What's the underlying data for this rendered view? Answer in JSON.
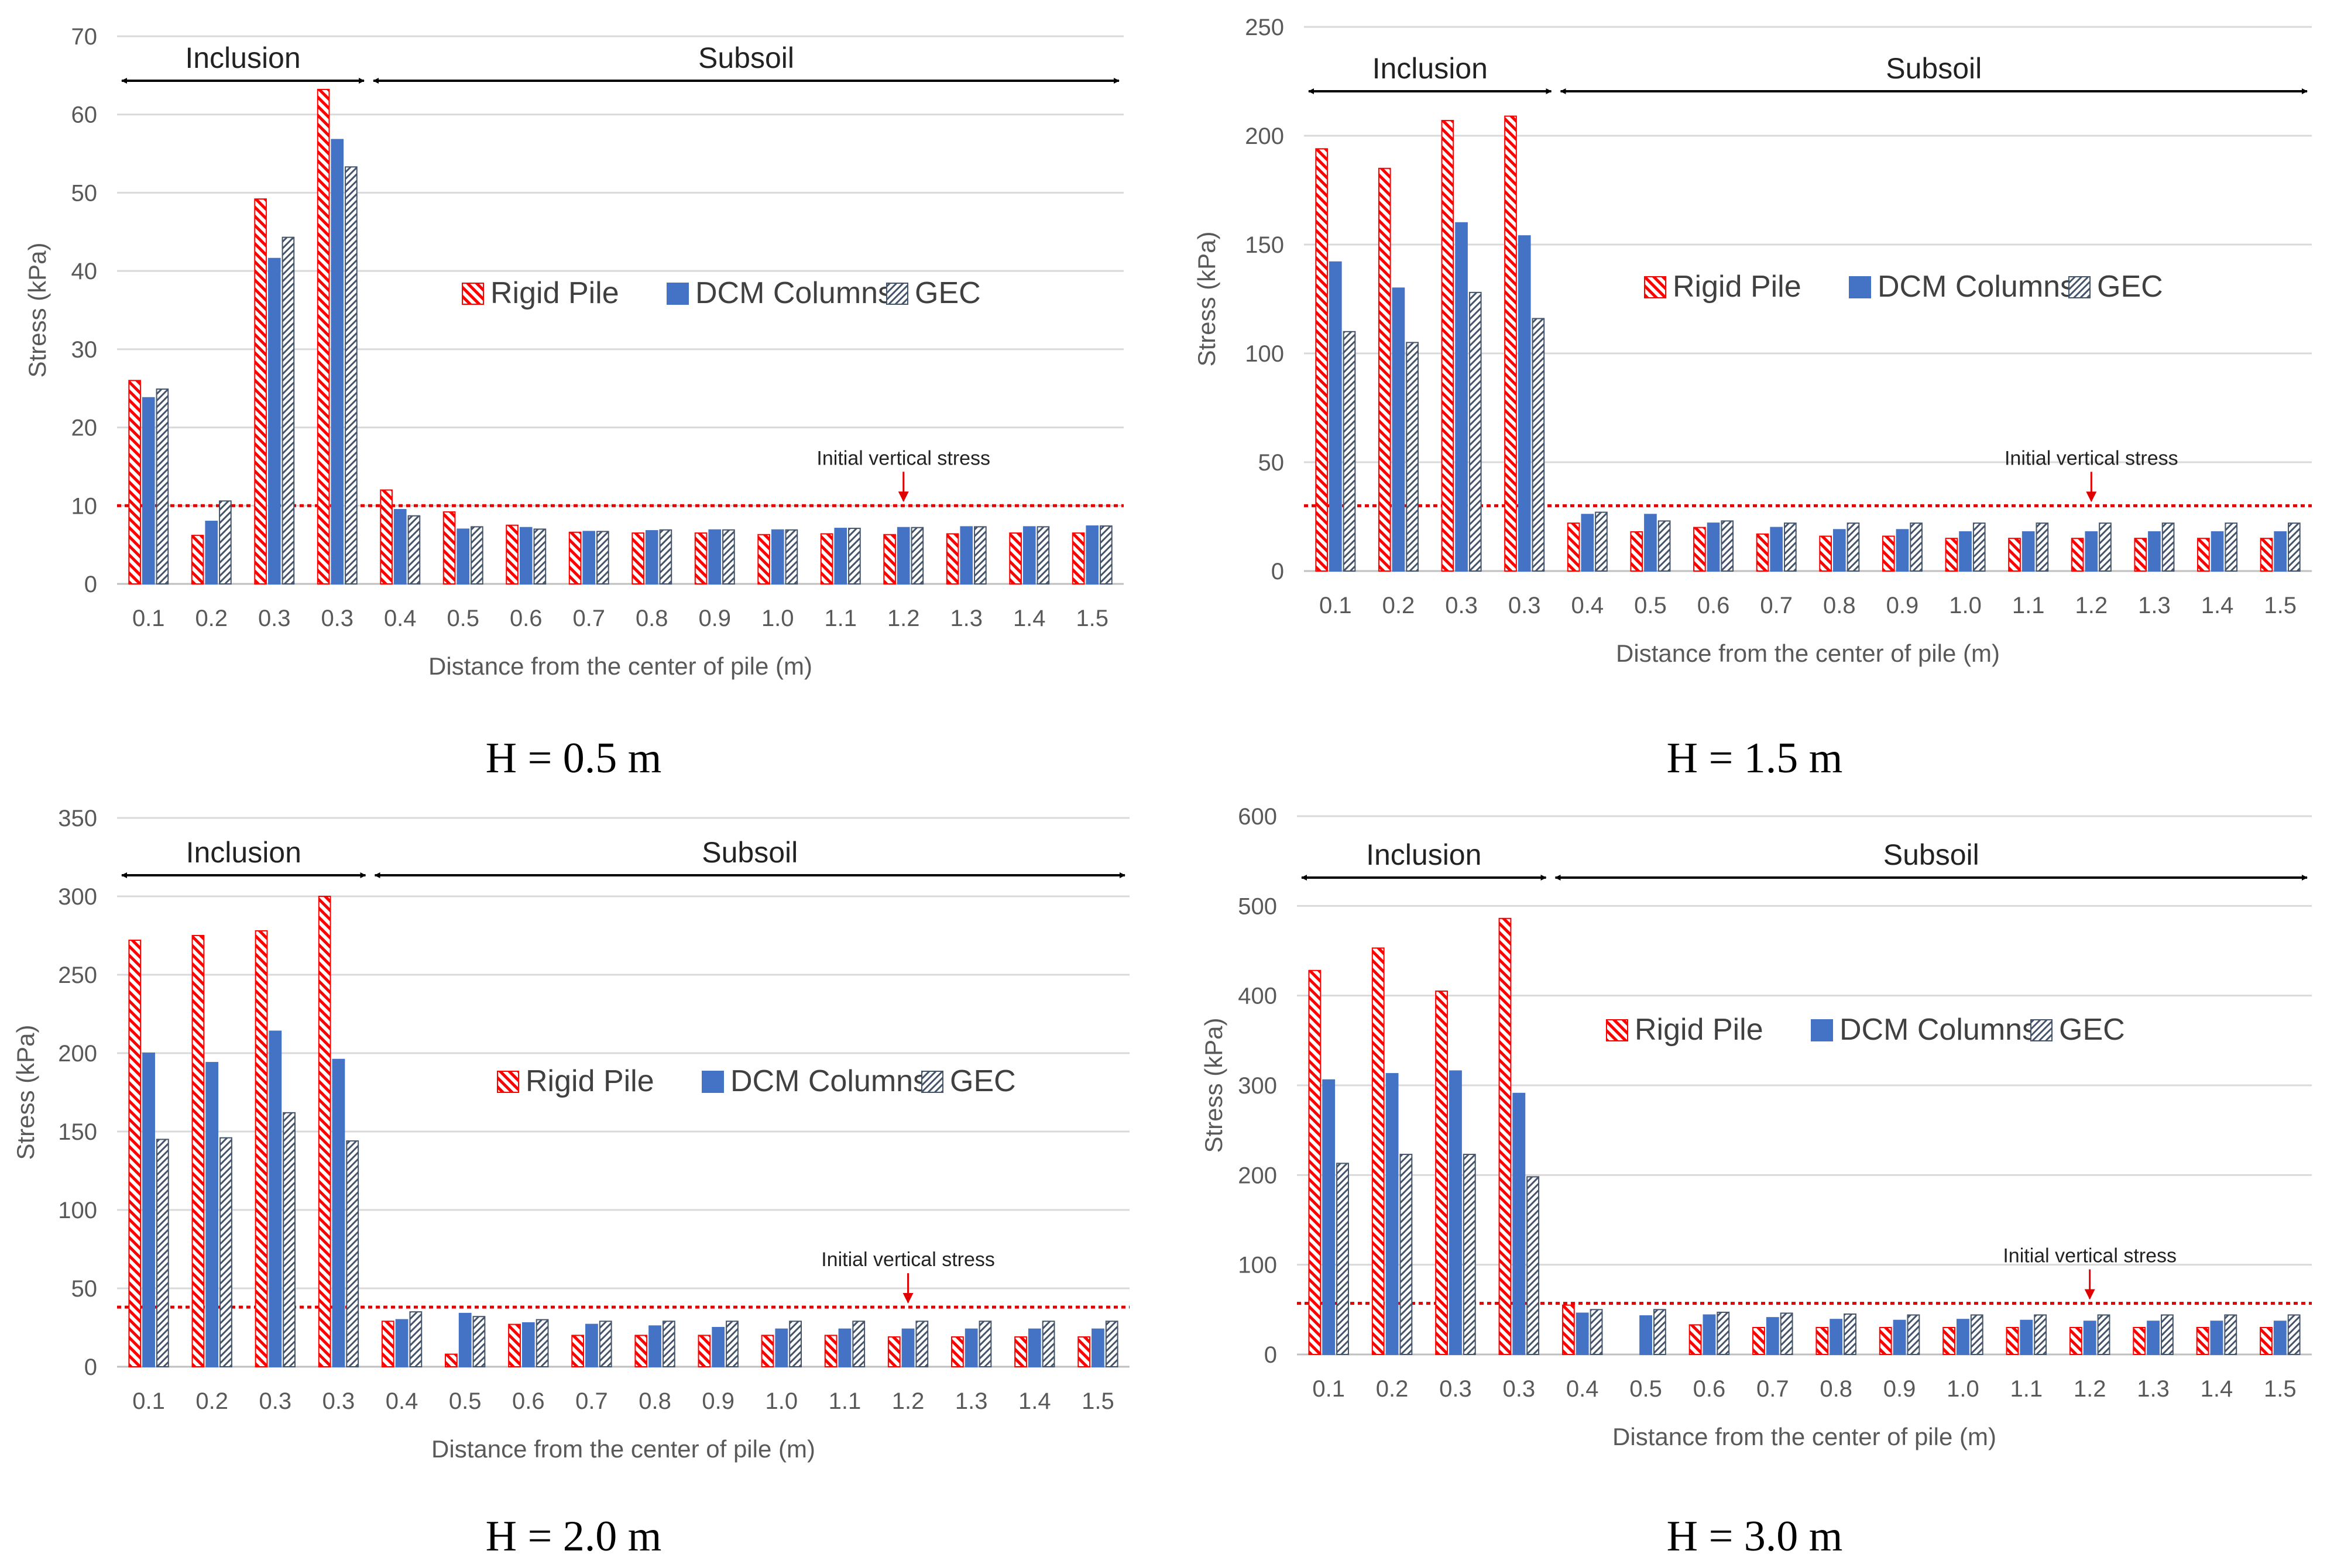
{
  "figure": {
    "series_names": [
      "Rigid Pile",
      "DCM Columns",
      "GEC"
    ],
    "colors": {
      "rigid": "#ff0000",
      "dcm": "#4472c4",
      "gec": "#44546a",
      "grid": "#d9d9d9",
      "threshold": "#e00000"
    },
    "annotation": "Initial vertical stress",
    "region_labels": {
      "inclusion": "Inclusion",
      "subsoil": "Subsoil"
    }
  },
  "chart_data": [
    {
      "type": "bar",
      "caption": "H = 0.5 m",
      "xlabel": "Distance from the center of pile (m)",
      "ylabel": "Stress (kPa)",
      "ylim": [
        0,
        70
      ],
      "yticks": [
        0,
        10,
        20,
        30,
        40,
        50,
        60,
        70
      ],
      "initial_vertical_stress": 10,
      "categories": [
        "0.1",
        "0.2",
        "0.3",
        "0.3",
        "0.4",
        "0.5",
        "0.6",
        "0.7",
        "0.8",
        "0.9",
        "1.0",
        "1.1",
        "1.2",
        "1.3",
        "1.4",
        "1.5"
      ],
      "series": [
        {
          "name": "Rigid Pile",
          "values": [
            26,
            6.2,
            49.2,
            63.2,
            12,
            9.2,
            7.5,
            6.6,
            6.5,
            6.5,
            6.3,
            6.4,
            6.3,
            6.4,
            6.5,
            6.5
          ]
        },
        {
          "name": "DCM Columns",
          "values": [
            23.8,
            8,
            41.6,
            56.8,
            9.5,
            7,
            7.2,
            6.7,
            6.8,
            6.9,
            6.9,
            7.1,
            7.2,
            7.3,
            7.3,
            7.4
          ]
        },
        {
          "name": "GEC",
          "values": [
            24.9,
            10.6,
            44.3,
            53.3,
            8.7,
            7.3,
            7,
            6.7,
            6.9,
            6.9,
            6.9,
            7.1,
            7.2,
            7.3,
            7.3,
            7.4
          ]
        }
      ]
    },
    {
      "type": "bar",
      "caption": "H = 1.5 m",
      "xlabel": "Distance from the center of pile (m)",
      "ylabel": "Stress (kPa)",
      "ylim": [
        0,
        250
      ],
      "yticks": [
        0,
        50,
        100,
        150,
        200,
        250
      ],
      "initial_vertical_stress": 30,
      "categories": [
        "0.1",
        "0.2",
        "0.3",
        "0.3",
        "0.4",
        "0.5",
        "0.6",
        "0.7",
        "0.8",
        "0.9",
        "1.0",
        "1.1",
        "1.2",
        "1.3",
        "1.4",
        "1.5"
      ],
      "series": [
        {
          "name": "Rigid Pile",
          "values": [
            194,
            185,
            207,
            209,
            22,
            18,
            20,
            17,
            16,
            16,
            15,
            15,
            15,
            15,
            15,
            15
          ]
        },
        {
          "name": "DCM Columns",
          "values": [
            142,
            130,
            160,
            154,
            26,
            26,
            22,
            20,
            19,
            19,
            18,
            18,
            18,
            18,
            18,
            18
          ]
        },
        {
          "name": "GEC",
          "values": [
            110,
            105,
            128,
            116,
            27,
            23,
            23,
            22,
            22,
            22,
            22,
            22,
            22,
            22,
            22,
            22
          ]
        }
      ]
    },
    {
      "type": "bar",
      "caption": "H = 2.0 m",
      "xlabel": "Distance from the center of pile (m)",
      "ylabel": "Stress (kPa)",
      "ylim": [
        0,
        350
      ],
      "yticks": [
        0,
        50,
        100,
        150,
        200,
        250,
        300,
        350
      ],
      "initial_vertical_stress": 38,
      "categories": [
        "0.1",
        "0.2",
        "0.3",
        "0.3",
        "0.4",
        "0.5",
        "0.6",
        "0.7",
        "0.8",
        "0.9",
        "1.0",
        "1.1",
        "1.2",
        "1.3",
        "1.4",
        "1.5"
      ],
      "series": [
        {
          "name": "Rigid Pile",
          "values": [
            272,
            275,
            278,
            300,
            29,
            8,
            27,
            20,
            20,
            20,
            20,
            20,
            19,
            19,
            19,
            19
          ]
        },
        {
          "name": "DCM Columns",
          "values": [
            200,
            194,
            214,
            196,
            30,
            34,
            28,
            27,
            26,
            25,
            24,
            24,
            24,
            24,
            24,
            24
          ]
        },
        {
          "name": "GEC",
          "values": [
            145,
            146,
            162,
            144,
            35,
            32,
            30,
            29,
            29,
            29,
            29,
            29,
            29,
            29,
            29,
            29
          ]
        }
      ]
    },
    {
      "type": "bar",
      "caption": "H = 3.0 m",
      "xlabel": "Distance from the center of pile (m)",
      "ylabel": "Stress (kPa)",
      "ylim": [
        0,
        600
      ],
      "yticks": [
        0,
        100,
        200,
        300,
        400,
        500,
        600
      ],
      "initial_vertical_stress": 57,
      "categories": [
        "0.1",
        "0.2",
        "0.3",
        "0.3",
        "0.4",
        "0.5",
        "0.6",
        "0.7",
        "0.8",
        "0.9",
        "1.0",
        "1.1",
        "1.2",
        "1.3",
        "1.4",
        "1.5"
      ],
      "series": [
        {
          "name": "Rigid Pile",
          "values": [
            428,
            453,
            405,
            486,
            55,
            0,
            33,
            30,
            30,
            30,
            30,
            30,
            30,
            30,
            30,
            30
          ]
        },
        {
          "name": "DCM Columns",
          "values": [
            306,
            313,
            316,
            291,
            46,
            43,
            44,
            41,
            39,
            38,
            39,
            38,
            37,
            37,
            37,
            37
          ]
        },
        {
          "name": "GEC",
          "values": [
            213,
            223,
            223,
            198,
            50,
            50,
            47,
            46,
            45,
            44,
            44,
            44,
            44,
            44,
            44,
            44
          ]
        }
      ]
    }
  ]
}
